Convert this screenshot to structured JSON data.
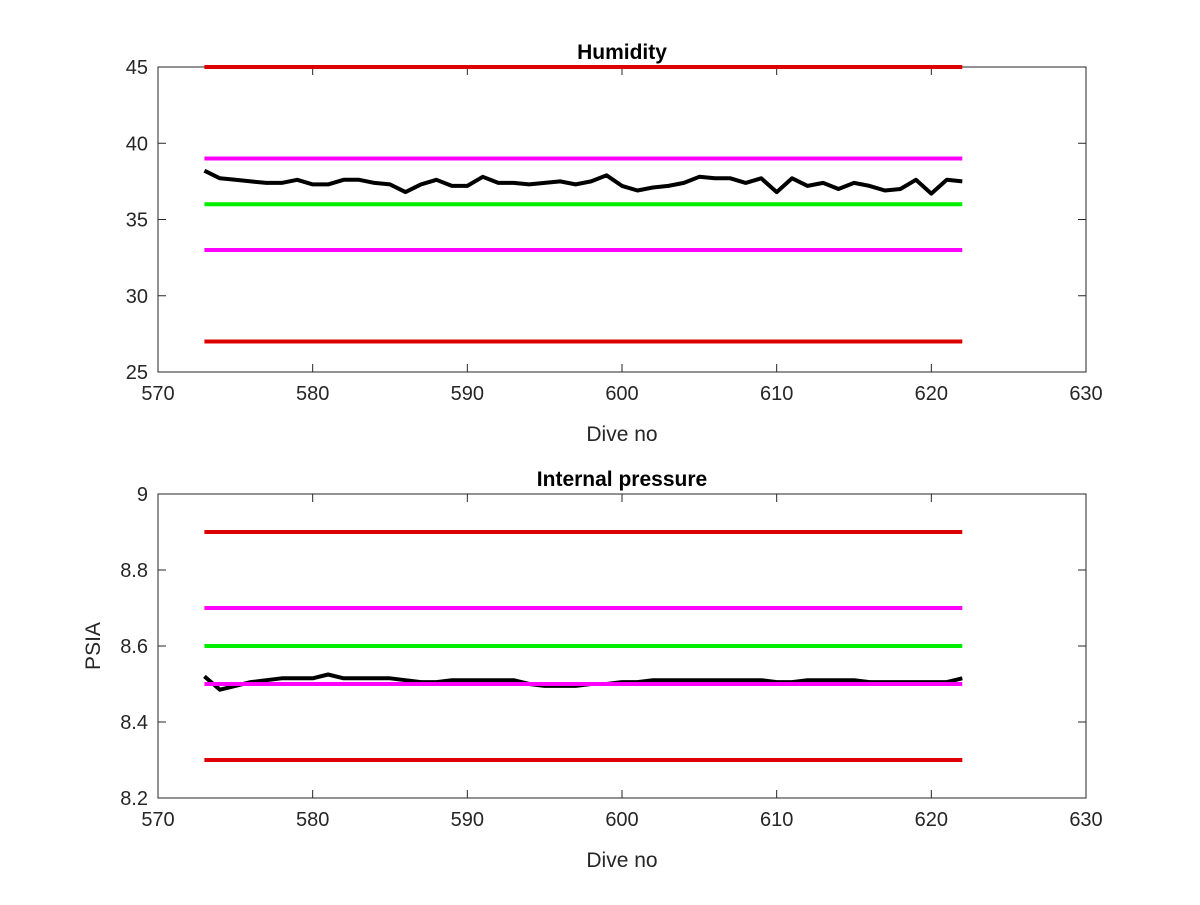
{
  "chart_data": [
    {
      "type": "line",
      "title": "Humidity",
      "xlabel": "Dive no",
      "ylabel": "",
      "xlim": [
        570,
        630
      ],
      "ylim": [
        25,
        45
      ],
      "xticks": [
        570,
        580,
        590,
        600,
        610,
        620,
        630
      ],
      "yticks": [
        25,
        30,
        35,
        40,
        45
      ],
      "xtick_labels": [
        "570",
        "580",
        "590",
        "600",
        "610",
        "620",
        "630"
      ],
      "ytick_labels": [
        "25",
        "30",
        "35",
        "40",
        "45"
      ],
      "grid": false,
      "series": [
        {
          "color": "#dd0000",
          "x": [
            573,
            622
          ],
          "y": [
            45,
            45
          ]
        },
        {
          "color": "#ff00ff",
          "x": [
            573,
            622
          ],
          "y": [
            39,
            39
          ]
        },
        {
          "color": "#00ee00",
          "x": [
            573,
            622
          ],
          "y": [
            36,
            36
          ]
        },
        {
          "color": "#ff00ff",
          "x": [
            573,
            622
          ],
          "y": [
            33,
            33
          ]
        },
        {
          "color": "#dd0000",
          "x": [
            573,
            622
          ],
          "y": [
            27,
            27
          ]
        },
        {
          "color": "#000000",
          "x": [
            573,
            574,
            575,
            576,
            577,
            578,
            579,
            580,
            581,
            582,
            583,
            584,
            585,
            586,
            587,
            588,
            589,
            590,
            591,
            592,
            593,
            594,
            595,
            596,
            597,
            598,
            599,
            600,
            601,
            602,
            603,
            604,
            605,
            606,
            607,
            608,
            609,
            610,
            611,
            612,
            613,
            614,
            615,
            616,
            617,
            618,
            619,
            620,
            621,
            622
          ],
          "y": [
            38.2,
            37.7,
            37.6,
            37.5,
            37.4,
            37.4,
            37.6,
            37.3,
            37.3,
            37.6,
            37.6,
            37.4,
            37.3,
            36.8,
            37.3,
            37.6,
            37.2,
            37.2,
            37.8,
            37.4,
            37.4,
            37.3,
            37.4,
            37.5,
            37.3,
            37.5,
            37.9,
            37.2,
            36.9,
            37.1,
            37.2,
            37.4,
            37.8,
            37.7,
            37.7,
            37.4,
            37.7,
            36.8,
            37.7,
            37.2,
            37.4,
            37.0,
            37.4,
            37.2,
            36.9,
            37.0,
            37.6,
            36.7,
            37.6,
            37.5
          ]
        }
      ]
    },
    {
      "type": "line",
      "title": "Internal pressure",
      "xlabel": "Dive no",
      "ylabel": "PSIA",
      "xlim": [
        570,
        630
      ],
      "ylim": [
        8.2,
        9
      ],
      "xticks": [
        570,
        580,
        590,
        600,
        610,
        620,
        630
      ],
      "yticks": [
        8.2,
        8.4,
        8.6,
        8.8,
        9
      ],
      "xtick_labels": [
        "570",
        "580",
        "590",
        "600",
        "610",
        "620",
        "630"
      ],
      "ytick_labels": [
        "8.2",
        "8.4",
        "8.6",
        "8.8",
        "9"
      ],
      "grid": false,
      "series": [
        {
          "color": "#dd0000",
          "x": [
            573,
            622
          ],
          "y": [
            8.9,
            8.9
          ]
        },
        {
          "color": "#ff00ff",
          "x": [
            573,
            622
          ],
          "y": [
            8.7,
            8.7
          ]
        },
        {
          "color": "#00ee00",
          "x": [
            573,
            622
          ],
          "y": [
            8.6,
            8.6
          ]
        },
        {
          "color": "#000000",
          "x": [
            573,
            574,
            575,
            576,
            577,
            578,
            579,
            580,
            581,
            582,
            583,
            584,
            585,
            586,
            587,
            588,
            589,
            590,
            591,
            592,
            593,
            594,
            595,
            596,
            597,
            598,
            599,
            600,
            601,
            602,
            603,
            604,
            605,
            606,
            607,
            608,
            609,
            610,
            611,
            612,
            613,
            614,
            615,
            616,
            617,
            618,
            619,
            620,
            621,
            622
          ],
          "y": [
            8.52,
            8.485,
            8.495,
            8.505,
            8.51,
            8.515,
            8.515,
            8.515,
            8.525,
            8.515,
            8.515,
            8.515,
            8.515,
            8.51,
            8.505,
            8.505,
            8.51,
            8.51,
            8.51,
            8.51,
            8.51,
            8.5,
            8.495,
            8.495,
            8.495,
            8.5,
            8.5,
            8.505,
            8.505,
            8.51,
            8.51,
            8.51,
            8.51,
            8.51,
            8.51,
            8.51,
            8.51,
            8.505,
            8.505,
            8.51,
            8.51,
            8.51,
            8.51,
            8.505,
            8.505,
            8.505,
            8.505,
            8.505,
            8.505,
            8.515
          ]
        },
        {
          "color": "#ff00ff",
          "x": [
            573,
            622
          ],
          "y": [
            8.5,
            8.5
          ]
        },
        {
          "color": "#dd0000",
          "x": [
            573,
            622
          ],
          "y": [
            8.3,
            8.3
          ]
        }
      ]
    }
  ]
}
